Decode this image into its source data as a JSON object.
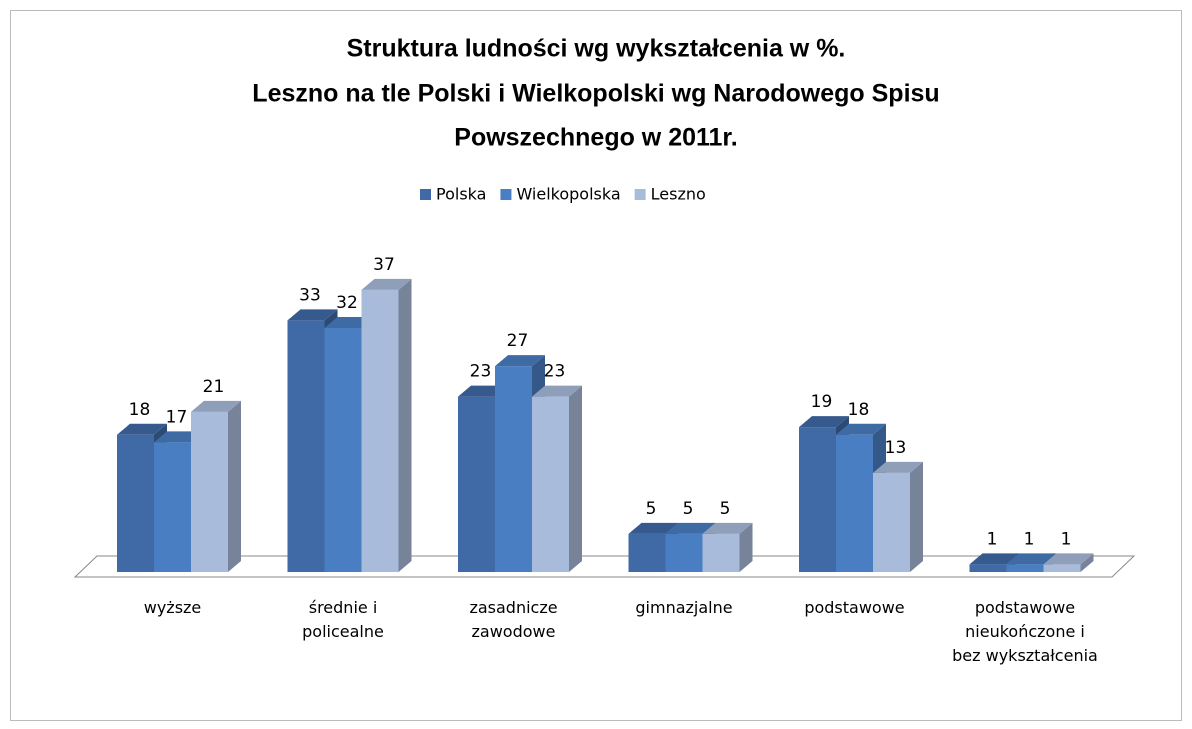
{
  "chart_data": {
    "type": "bar3d",
    "title": [
      "Struktura ludności wg wykształcenia w %.",
      "Leszno na tle Polski i Wielkopolski wg Narodowego Spisu",
      "Powszechnego w 2011r."
    ],
    "categories": [
      "wyższe",
      "średnie i policealne",
      "zasadnicze zawodowe",
      "gimnazjalne",
      "podstawowe",
      "podstawowe nieukończone i bez wykształcenia"
    ],
    "series": [
      {
        "name": "Polska",
        "color": "#3f6aa6",
        "values": [
          18,
          33,
          23,
          5,
          19,
          1
        ]
      },
      {
        "name": "Wielkopolska",
        "color": "#4a7ec2",
        "values": [
          17,
          32,
          27,
          5,
          18,
          1
        ]
      },
      {
        "name": "Leszno",
        "color": "#a8bbdb",
        "values": [
          21,
          37,
          23,
          5,
          13,
          1
        ]
      }
    ],
    "ylim": [
      0,
      40
    ],
    "legend": "top"
  }
}
